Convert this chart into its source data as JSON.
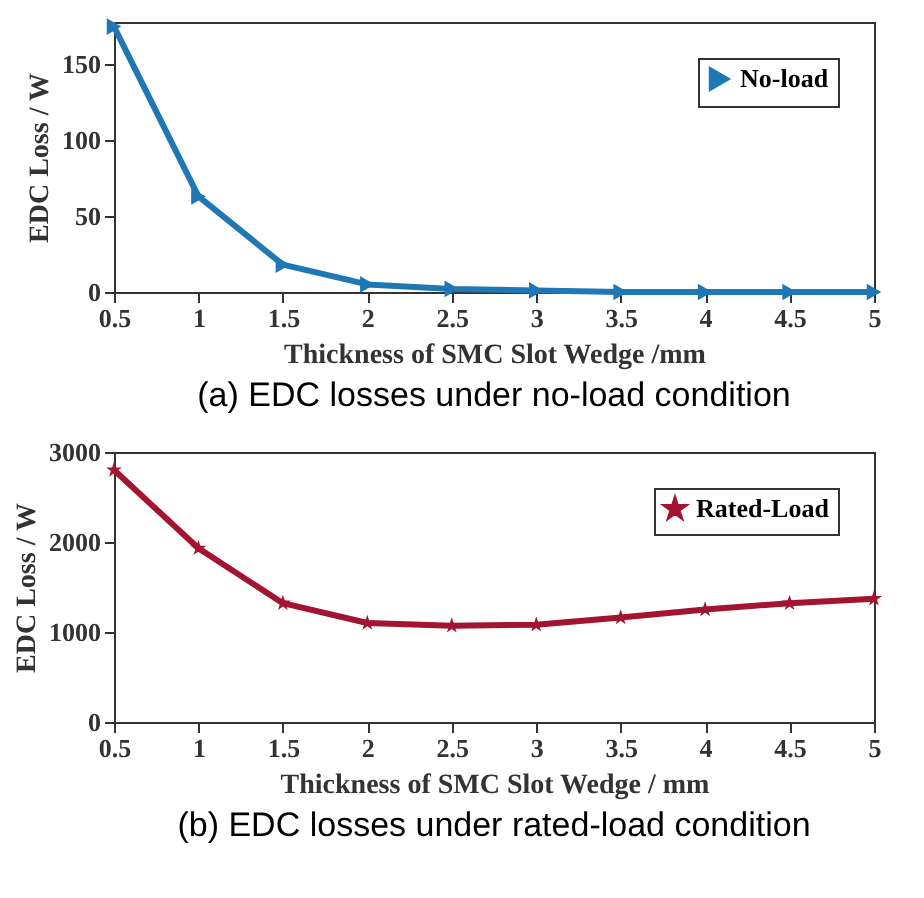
{
  "chart_data": [
    {
      "type": "line",
      "title": "(a) EDC losses under no-load condition",
      "xlabel": "Thickness of SMC Slot Wedge /mm",
      "ylabel": "EDC Loss / W",
      "x": [
        0.5,
        1,
        1.5,
        2,
        2.5,
        3,
        3.5,
        4,
        4.5,
        5
      ],
      "series": [
        {
          "name": "No-load",
          "color": "#1f77b4",
          "values": [
            175,
            63,
            18,
            5,
            2,
            1,
            0,
            0,
            0,
            0
          ]
        }
      ],
      "xlim": [
        0.5,
        5
      ],
      "xticks": [
        0.5,
        1,
        1.5,
        2,
        2.5,
        3,
        3.5,
        4,
        4.5,
        5
      ],
      "ylim": [
        0,
        178
      ],
      "yticks": [
        0,
        50,
        100,
        150
      ],
      "marker": "triangle",
      "legend": "top right",
      "grid": false
    },
    {
      "type": "line",
      "title": "(b) EDC losses under rated-load condition",
      "xlabel": "Thickness of SMC Slot Wedge / mm",
      "ylabel": "EDC Loss / W",
      "x": [
        0.5,
        1,
        1.5,
        2,
        2.5,
        3,
        3.5,
        4,
        4.5,
        5
      ],
      "series": [
        {
          "name": "Rated-Load",
          "color": "#a2142f",
          "values": [
            2800,
            1930,
            1320,
            1100,
            1070,
            1080,
            1160,
            1250,
            1320,
            1370
          ]
        }
      ],
      "xlim": [
        0.5,
        5
      ],
      "xticks": [
        0.5,
        1,
        1.5,
        2,
        2.5,
        3,
        3.5,
        4,
        4.5,
        5
      ],
      "ylim": [
        0,
        3000
      ],
      "yticks": [
        0,
        1000,
        2000,
        3000
      ],
      "marker": "star",
      "legend": "top right",
      "grid": false
    }
  ]
}
